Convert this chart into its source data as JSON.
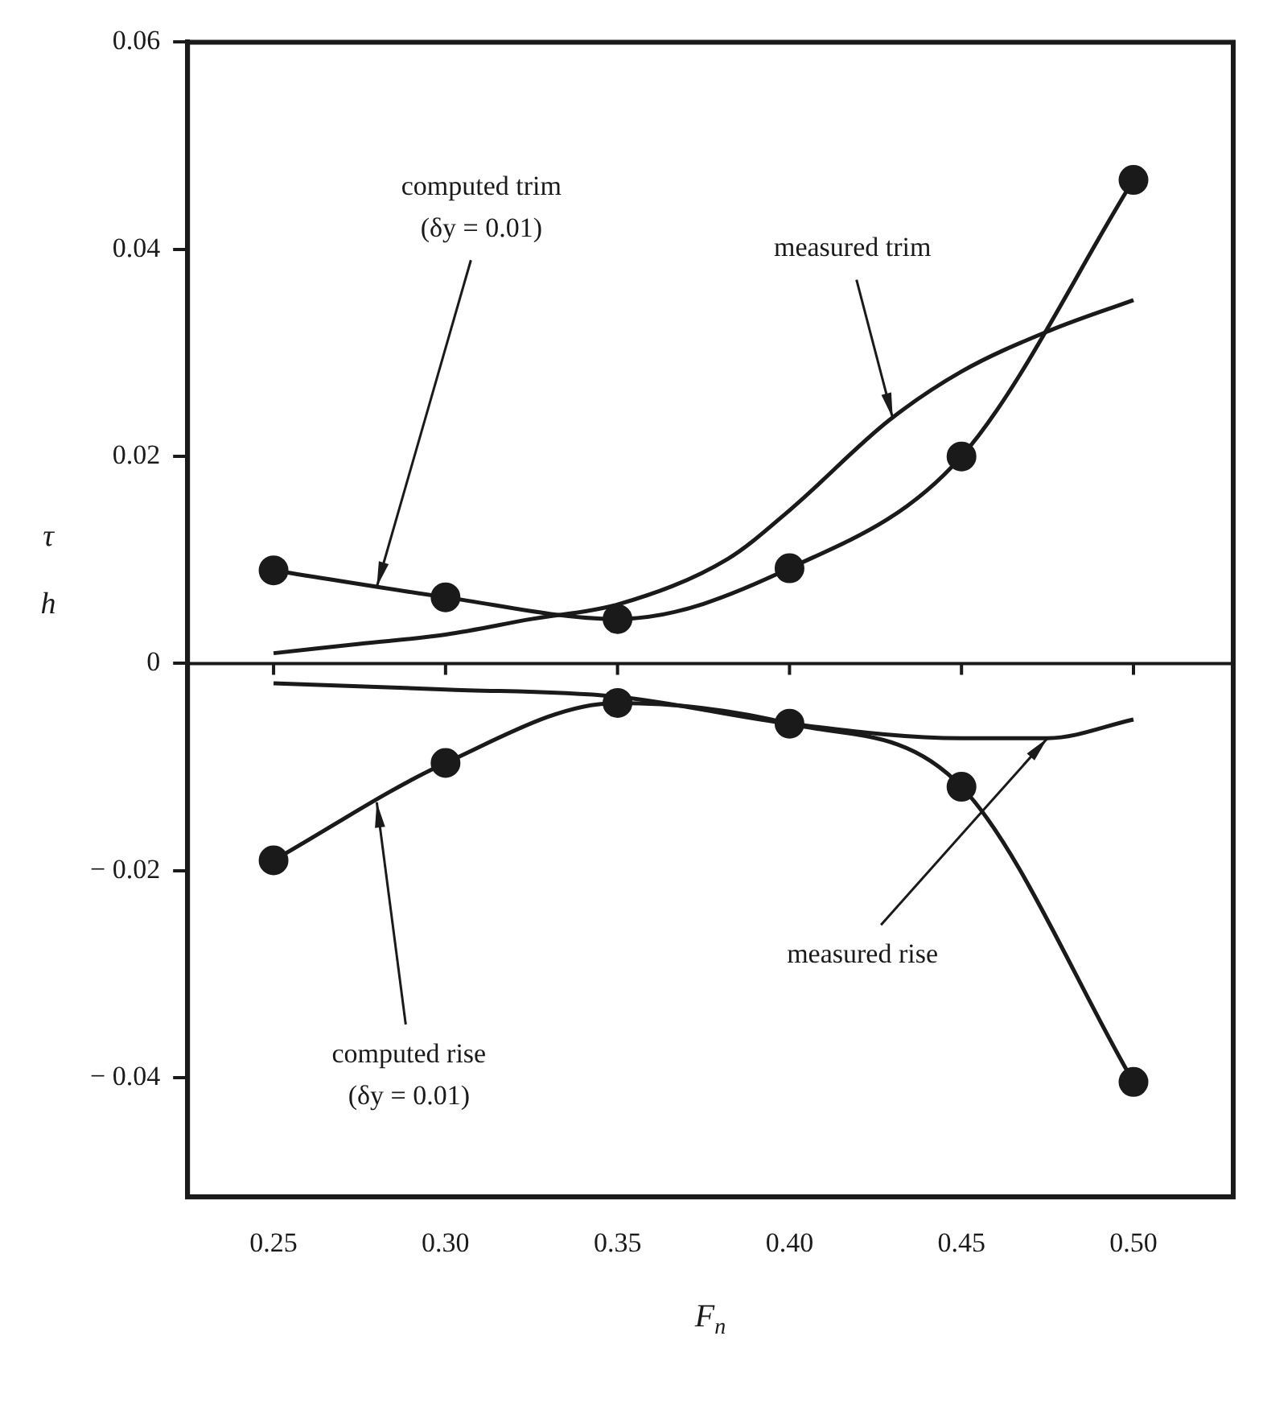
{
  "chart_data": {
    "type": "line",
    "xlabel": "F$_{n}$",
    "ylabel": "τ h",
    "xlim": [
      0.225,
      0.529
    ],
    "ylim": [
      -0.0515,
      0.06
    ],
    "xticks": [
      0.25,
      {
        "value": 0.3,
        "label": "0.30"
      },
      0.35,
      {
        "value": 0.4,
        "label": "0.40"
      },
      0.45,
      {
        "value": 0.5,
        "label": "0.50"
      }
    ],
    "yticks": [
      {
        "value": -0.04,
        "label": "− 0.04"
      },
      {
        "value": -0.02,
        "label": "− 0.02"
      },
      0,
      0.02,
      0.04,
      0.06
    ],
    "grid": false,
    "legend": false,
    "line_style": "solid",
    "ref_lines": [
      {
        "axis": "y",
        "value": 0
      }
    ],
    "series": [
      {
        "color": "#1a1a1a",
        "marker": "circle",
        "x": [
          0.25,
          0.3,
          0.35,
          0.4,
          0.45,
          0.5
        ],
        "values": [
          0.009,
          0.0064,
          0.0043,
          0.0092,
          0.02,
          0.0467
        ]
      },
      {
        "color": "#1a1a1a",
        "marker": "none",
        "x": [
          0.25,
          0.275,
          0.3,
          0.325,
          0.35,
          0.382,
          0.4,
          0.429,
          0.45,
          0.476,
          0.5
        ],
        "values": [
          0.001,
          0.0019,
          0.0028,
          0.0043,
          0.0057,
          0.0101,
          0.0148,
          0.0235,
          0.0282,
          0.0322,
          0.0351
        ]
      },
      {
        "color": "#1a1a1a",
        "marker": "circle",
        "x": [
          0.25,
          0.3,
          0.35,
          0.4,
          0.45,
          0.5
        ],
        "values": [
          -0.019,
          -0.0096,
          -0.0038,
          -0.0058,
          -0.0119,
          -0.0404
        ]
      },
      {
        "color": "#1a1a1a",
        "marker": "none",
        "x": [
          0.25,
          0.3,
          0.35,
          0.4,
          0.45,
          0.475,
          0.5
        ],
        "values": [
          -0.0019,
          -0.0025,
          -0.0032,
          -0.0058,
          -0.0072,
          -0.0072,
          -0.0054
        ]
      }
    ],
    "annotations": [
      {
        "text": "computed trim (δy = 0.01)",
        "x": 0.28,
        "y": 0.0074
      },
      {
        "text": "measured trim",
        "x": 0.43,
        "y": 0.0237
      },
      {
        "text": "measured rise",
        "x": 0.475,
        "y": -0.0072
      },
      {
        "text": "computed rise (δy = 0.01)",
        "x": 0.28,
        "y": -0.0134
      }
    ]
  }
}
